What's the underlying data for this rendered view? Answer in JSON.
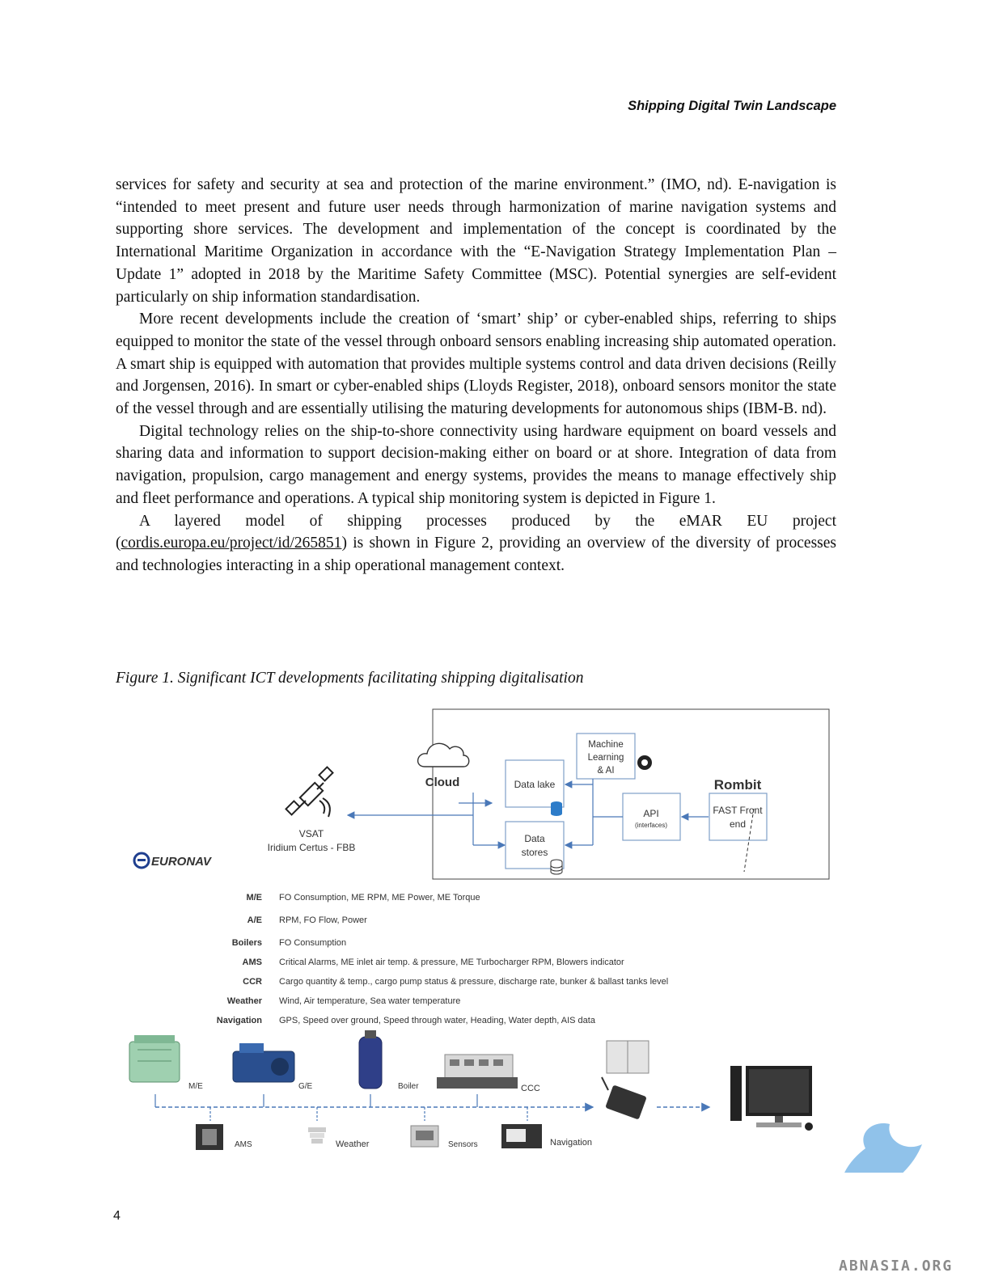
{
  "header": {
    "running_title": "Shipping Digital Twin Landscape"
  },
  "paragraphs": {
    "p1": "services for safety and security at sea and protection of the marine environment.” (IMO, nd). E-navigation is “intended to meet present and future user needs through harmonization of marine navigation systems and supporting shore services. The development and implementation of the concept is coordinated by the International Maritime Organization in accordance with the “E-Navigation Strategy Implementation Plan – Update 1” adopted in 2018 by the Maritime Safety Committee (MSC). Potential synergies are self-evident particularly on ship information standardisation.",
    "p2": "More recent developments include the creation of ‘smart’ ship’ or cyber-enabled ships, referring to ships equipped to monitor the state of the vessel through onboard sensors enabling increasing ship automated operation. A smart ship is equipped with automation that provides multiple systems control and data driven decisions (Reilly and Jorgensen, 2016). In smart or cyber-enabled ships (Lloyds Register, 2018), onboard sensors monitor the state of the vessel through and are essentially utilising the maturing developments for autonomous ships (IBM-B. nd).",
    "p3": "Digital technology relies on the ship-to-shore connectivity using hardware equipment on board vessels and sharing data and information to support decision-making either on board or at shore. Integration of data from navigation, propulsion, cargo management and energy systems, provides the means to manage effectively ship and fleet performance and operations. A typical ship monitoring system is depicted in Figure 1.",
    "p4_before": "A layered model of shipping processes produced by the eMAR EU project (",
    "p4_link": "cordis.europa.eu/project/id/265851",
    "p4_after": ") is shown in Figure 2, providing an overview of the diversity of processes and technologies interacting in a ship operational management context."
  },
  "figure": {
    "caption": "Figure 1. Significant ICT developments facilitating shipping digitalisation",
    "cloud_label": "Cloud",
    "vsat_line1": "VSAT",
    "vsat_line2": "Iridium Certus - FBB",
    "euronav_logo": "EURONAV",
    "ml_line1": "Machine",
    "ml_line2": "Learning",
    "ml_line3": "& AI",
    "data_lake": "Data lake",
    "api_line1": "API",
    "api_line2": "(interfaces)",
    "data_stores_line1": "Data",
    "data_stores_line2": "stores",
    "rombit_logo": "Rombit",
    "fast_line1": "FAST Front",
    "fast_line2": "end",
    "data_rows": [
      {
        "label": "M/E",
        "value": "FO Consumption, ME RPM, ME Power, ME Torque"
      },
      {
        "label": "A/E",
        "value": "RPM, FO Flow, Power"
      },
      {
        "label": "Boilers",
        "value": "FO Consumption"
      },
      {
        "label": "AMS",
        "value": "Critical Alarms, ME inlet air temp. & pressure, ME Turbocharger RPM, Blowers indicator"
      },
      {
        "label": "CCR",
        "value": "Cargo quantity & temp., cargo pump status & pressure, discharge rate, bunker & ballast tanks level"
      },
      {
        "label": "Weather",
        "value": "Wind, Air temperature, Sea water temperature"
      },
      {
        "label": "Navigation",
        "value": "GPS, Speed over ground, Speed through water, Heading, Water depth, AIS data"
      }
    ],
    "equipment": {
      "me": "M/E",
      "ge": "G/E",
      "boiler": "Boiler",
      "ccc": "CCC",
      "ams": "AMS",
      "weather": "Weather",
      "sensors": "Sensors",
      "navigation": "Navigation"
    }
  },
  "page_number": "4",
  "watermark": "ABNASIA.ORG"
}
